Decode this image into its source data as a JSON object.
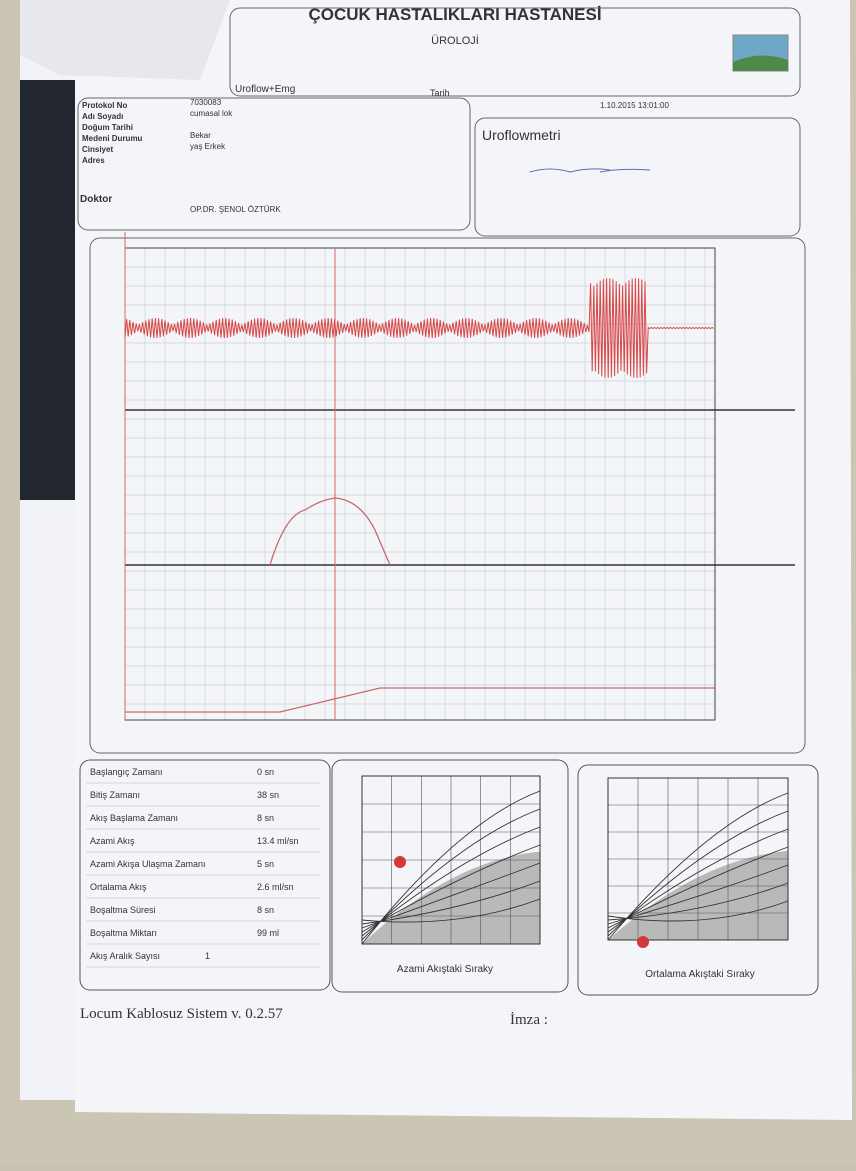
{
  "header": {
    "hospital": "ÇOCUK HASTALIKLARI HASTANESİ",
    "department": "ÜROLOJİ",
    "test_type": "Uroflow+Emg",
    "date_label": "Tarih",
    "date": "1.10.2015 13:01:00"
  },
  "patient": {
    "fields": [
      {
        "label": "Protokol No",
        "value": "7030083"
      },
      {
        "label": "Adı Soyadı",
        "value": "cumasal lok"
      },
      {
        "label": "Doğum Tarihi"
      },
      {
        "label": "Medeni Durumu",
        "value": "Bekar"
      },
      {
        "label": "Cinsiyet",
        "value": "yaş Erkek"
      },
      {
        "label": "Adres"
      }
    ],
    "doctor_label": "Doktor",
    "doctor": "OP.DR. ŞENOL ÖZTÜRK"
  },
  "report": {
    "title": "Uroflowmetri"
  },
  "stats": [
    [
      "Başlangıç Zamanı",
      "0 sn"
    ],
    [
      "Bitiş Zamanı",
      "38 sn"
    ],
    [
      "Akış Başlama Zamanı",
      "8 sn"
    ],
    [
      "Azami Akış",
      "13.4 ml/sn"
    ],
    [
      "Azami Akışa Ulaşma Zamanı",
      "5 sn"
    ],
    [
      "Ortalama Akış",
      "2.6 ml/sn"
    ],
    [
      "Boşaltma Süresi",
      "8 sn"
    ],
    [
      "Boşaltma Miktarı",
      "99 ml"
    ],
    [
      "Akış Aralık Sayısı",
      "1"
    ]
  ],
  "nomograms": {
    "max_flow": "Azami Akıştaki Sıraky",
    "mean_flow": "Ortalama Akıştaki Sıraky"
  },
  "footer": {
    "software": "Locum Kablosuz Sistem v. 0.2.57",
    "signature": "İmza :"
  }
}
